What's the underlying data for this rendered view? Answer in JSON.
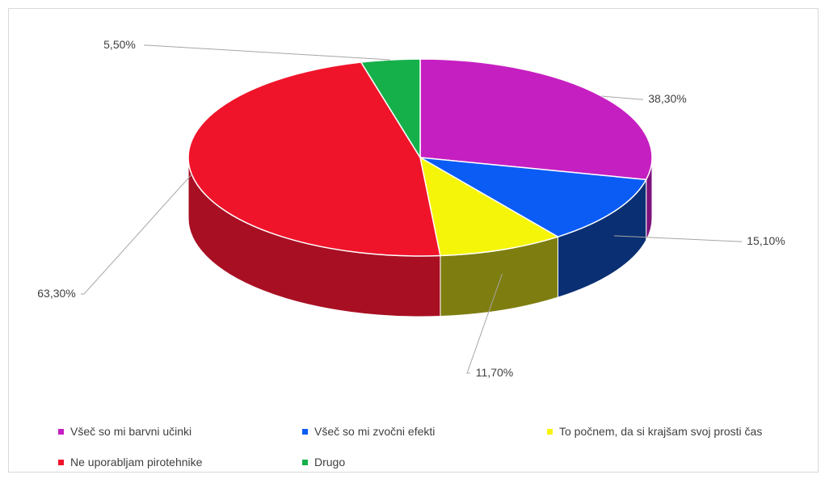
{
  "chart_data": {
    "type": "pie",
    "style": "3d",
    "categories": [
      "Všeč so mi barvni učinki",
      "Všeč so mi zvočni efekti",
      "To počnem, da si krajšam svoj prosti čas",
      "Ne uporabljam pirotehnike",
      "Drugo"
    ],
    "values": [
      38.3,
      15.1,
      11.7,
      63.3,
      5.5
    ],
    "data_labels": [
      "38,30%",
      "15,10%",
      "11,70%",
      "63,30%",
      "5,50%"
    ],
    "colors": [
      "#c61fc1",
      "#0b5cf5",
      "#f5f50a",
      "#f0142a",
      "#16b04b"
    ],
    "side_colors": [
      "#7f127c",
      "#0a2f72",
      "#7e7d10",
      "#a80f22",
      "#0d6e2f"
    ],
    "legend_position": "bottom",
    "title": ""
  }
}
